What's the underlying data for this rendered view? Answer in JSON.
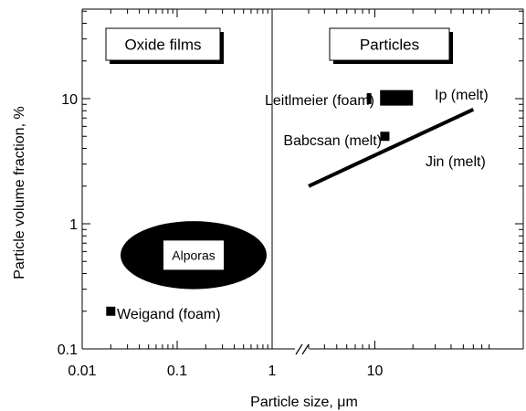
{
  "chart_data": {
    "type": "scatter",
    "xscale": "log",
    "yscale": "log",
    "xaxis_break": {
      "from": 1,
      "to": 3
    },
    "xlim": [
      0.01,
      80
    ],
    "ylim": [
      0.1,
      50
    ],
    "xlabel": "Particle size, μm",
    "ylabel": "Particle volume fraction, %",
    "xticks": [
      {
        "value": 0.01,
        "label": "0.01"
      },
      {
        "value": 0.1,
        "label": "0.1"
      },
      {
        "value": 1,
        "label": "1"
      },
      {
        "value": 10,
        "label": "10"
      }
    ],
    "yticks": [
      {
        "value": 0.1,
        "label": "0.1"
      },
      {
        "value": 1,
        "label": "1"
      },
      {
        "value": 10,
        "label": "10"
      }
    ],
    "region_boxes": [
      {
        "label": "Oxide films",
        "x_range": [
          0.01,
          1
        ]
      },
      {
        "label": "Particles",
        "x_range": [
          3,
          80
        ]
      }
    ],
    "region_divider_x": 1,
    "series": [
      {
        "name": "Leitlmeier (foam)",
        "kind": "point",
        "x": 9,
        "y": 10
      },
      {
        "name": "Ip (melt)",
        "kind": "range",
        "x": [
          11,
          20
        ],
        "y": [
          8.8,
          11.7
        ]
      },
      {
        "name": "Babcsan (melt)",
        "kind": "point",
        "x": 12,
        "y": 5
      },
      {
        "name": "Jin (melt)",
        "kind": "line",
        "x": [
          3,
          60
        ],
        "y": [
          2,
          8.2
        ]
      },
      {
        "name": "Alporas",
        "kind": "ellipse",
        "x": [
          0.01,
          1
        ],
        "y": [
          0.3,
          1.05
        ]
      },
      {
        "name": "Weigand (foam)",
        "kind": "point",
        "x": 0.02,
        "y": 0.2
      }
    ]
  }
}
